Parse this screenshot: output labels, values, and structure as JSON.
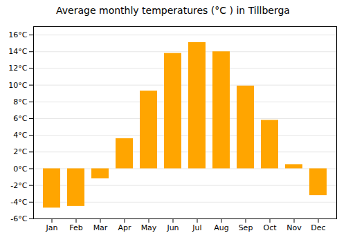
{
  "chart_data": {
    "type": "bar",
    "title": "Average monthly temperatures (°C ) in Tillberga",
    "categories": [
      "Jan",
      "Feb",
      "Mar",
      "Apr",
      "May",
      "Jun",
      "Jul",
      "Aug",
      "Sep",
      "Oct",
      "Nov",
      "Dec"
    ],
    "values": [
      -4.7,
      -4.5,
      -1.2,
      3.6,
      9.3,
      13.8,
      15.1,
      14.0,
      9.9,
      5.8,
      0.5,
      -3.2
    ],
    "color": "#FFA500",
    "ylim": [
      -6,
      17
    ],
    "yticks": [
      {
        "value": -6,
        "label": "-6°C"
      },
      {
        "value": -4,
        "label": "-4°C"
      },
      {
        "value": -2,
        "label": "-2°C"
      },
      {
        "value": 0,
        "label": "0°C"
      },
      {
        "value": 2,
        "label": "2°C"
      },
      {
        "value": 4,
        "label": "4°C"
      },
      {
        "value": 6,
        "label": "6°C"
      },
      {
        "value": 8,
        "label": "8°C"
      },
      {
        "value": 10,
        "label": "10°C"
      },
      {
        "value": 12,
        "label": "12°C"
      },
      {
        "value": 14,
        "label": "14°C"
      },
      {
        "value": 16,
        "label": "16°C"
      }
    ],
    "grid": true
  }
}
